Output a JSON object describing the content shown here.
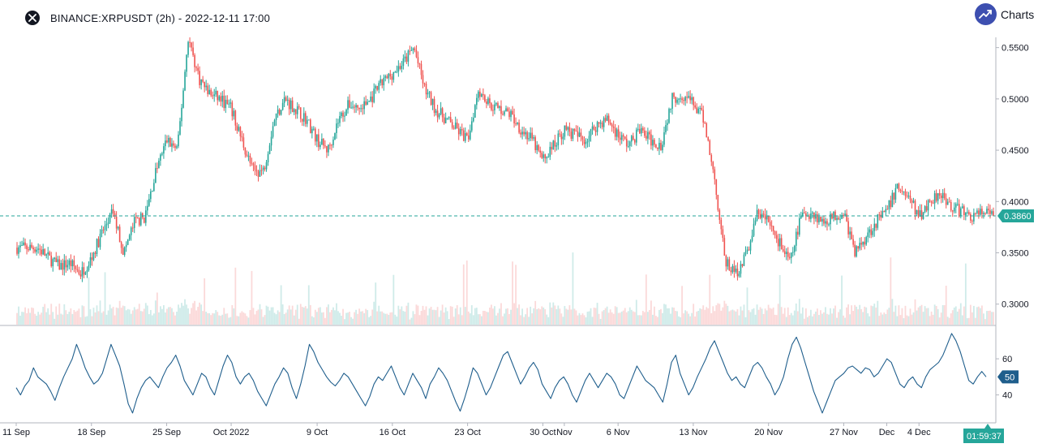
{
  "header": {
    "title": "BINANCE:XRPUSDT (2h) - 2022-12-11 17:00",
    "brand": "Charts p",
    "close_icon": "close-icon",
    "brand_icon": "trend-up-icon"
  },
  "colors": {
    "up": "#26a69a",
    "down": "#ef5350",
    "price_line": "#26a69a",
    "rsi": "#1f5e8c",
    "grid": "#e0e3eb"
  },
  "chart_data": [
    {
      "type": "candlestick",
      "title": "BINANCE:XRPUSDT (2h)",
      "ylim": [
        0.28,
        0.56
      ],
      "y_ticks": [
        "0.5500",
        "0.5000",
        "0.4500",
        "0.4000",
        "0.3500",
        "0.3000"
      ],
      "y_tick_values": [
        0.55,
        0.5,
        0.45,
        0.4,
        0.35,
        0.3
      ],
      "x_labels": [
        "11 Sep",
        "18 Sep",
        "25 Sep",
        "Oct 2022",
        "9 Oct",
        "16 Oct",
        "23 Oct",
        "30 Oct",
        "Nov",
        "6 Nov",
        "13 Nov",
        "20 Nov",
        "27 Nov",
        "Dec",
        "4 Dec"
      ],
      "x_label_days": [
        0,
        7,
        14,
        20,
        28,
        35,
        42,
        49,
        51,
        56,
        63,
        70,
        77,
        81,
        84
      ],
      "x_range_days": [
        0,
        91
      ],
      "last_price": 0.386,
      "last_price_label": "0.3860",
      "countdown": "01:59:37",
      "close_path": [
        [
          0,
          0.355
        ],
        [
          2,
          0.355
        ],
        [
          3,
          0.345
        ],
        [
          4,
          0.337
        ],
        [
          5,
          0.34
        ],
        [
          6,
          0.33
        ],
        [
          7,
          0.345
        ],
        [
          8,
          0.37
        ],
        [
          9,
          0.39
        ],
        [
          10,
          0.35
        ],
        [
          11,
          0.38
        ],
        [
          12,
          0.385
        ],
        [
          13,
          0.43
        ],
        [
          14,
          0.46
        ],
        [
          15,
          0.45
        ],
        [
          16,
          0.56
        ],
        [
          17,
          0.52
        ],
        [
          18,
          0.505
        ],
        [
          19,
          0.5
        ],
        [
          20,
          0.49
        ],
        [
          21,
          0.46
        ],
        [
          22,
          0.43
        ],
        [
          23,
          0.43
        ],
        [
          24,
          0.48
        ],
        [
          25,
          0.5
        ],
        [
          26,
          0.49
        ],
        [
          27,
          0.48
        ],
        [
          28,
          0.46
        ],
        [
          29,
          0.45
        ],
        [
          30,
          0.48
        ],
        [
          31,
          0.495
        ],
        [
          32,
          0.49
        ],
        [
          33,
          0.5
        ],
        [
          34,
          0.515
        ],
        [
          35,
          0.525
        ],
        [
          36,
          0.535
        ],
        [
          37,
          0.55
        ],
        [
          38,
          0.51
        ],
        [
          39,
          0.49
        ],
        [
          40,
          0.48
        ],
        [
          41,
          0.47
        ],
        [
          42,
          0.46
        ],
        [
          43,
          0.51
        ],
        [
          44,
          0.495
        ],
        [
          45,
          0.49
        ],
        [
          46,
          0.485
        ],
        [
          47,
          0.47
        ],
        [
          48,
          0.46
        ],
        [
          49,
          0.44
        ],
        [
          50,
          0.455
        ],
        [
          51,
          0.47
        ],
        [
          52,
          0.465
        ],
        [
          53,
          0.46
        ],
        [
          54,
          0.475
        ],
        [
          55,
          0.48
        ],
        [
          56,
          0.465
        ],
        [
          57,
          0.455
        ],
        [
          58,
          0.47
        ],
        [
          59,
          0.46
        ],
        [
          60,
          0.455
        ],
        [
          61,
          0.5
        ],
        [
          62,
          0.505
        ],
        [
          63,
          0.495
        ],
        [
          64,
          0.48
        ],
        [
          65,
          0.42
        ],
        [
          66,
          0.34
        ],
        [
          67,
          0.33
        ],
        [
          68,
          0.35
        ],
        [
          69,
          0.39
        ],
        [
          70,
          0.38
        ],
        [
          71,
          0.36
        ],
        [
          72,
          0.34
        ],
        [
          73,
          0.385
        ],
        [
          74,
          0.39
        ],
        [
          75,
          0.38
        ],
        [
          76,
          0.385
        ],
        [
          77,
          0.39
        ],
        [
          78,
          0.35
        ],
        [
          79,
          0.365
        ],
        [
          80,
          0.38
        ],
        [
          81,
          0.39
        ],
        [
          82,
          0.415
        ],
        [
          83,
          0.405
        ],
        [
          84,
          0.385
        ],
        [
          85,
          0.4
        ],
        [
          86,
          0.41
        ],
        [
          87,
          0.395
        ],
        [
          88,
          0.39
        ],
        [
          89,
          0.385
        ],
        [
          90,
          0.39
        ],
        [
          91,
          0.386
        ]
      ]
    },
    {
      "type": "line",
      "title": "RSI",
      "ylim": [
        25,
        78
      ],
      "y_ticks": [
        "60",
        "40"
      ],
      "y_tick_values": [
        60,
        40
      ],
      "last_value": 50,
      "last_value_label": "50",
      "values": [
        44,
        40,
        45,
        48,
        55,
        50,
        48,
        46,
        42,
        37,
        44,
        50,
        55,
        60,
        68,
        62,
        55,
        50,
        46,
        48,
        52,
        60,
        68,
        62,
        56,
        46,
        35,
        30,
        38,
        44,
        48,
        50,
        47,
        44,
        50,
        55,
        58,
        62,
        56,
        48,
        44,
        40,
        46,
        52,
        50,
        44,
        40,
        48,
        56,
        62,
        58,
        50,
        46,
        50,
        52,
        48,
        42,
        38,
        34,
        40,
        46,
        50,
        55,
        52,
        44,
        38,
        46,
        56,
        68,
        64,
        58,
        54,
        50,
        47,
        45,
        48,
        52,
        50,
        46,
        42,
        38,
        34,
        39,
        46,
        50,
        48,
        52,
        56,
        50,
        44,
        40,
        46,
        52,
        48,
        44,
        38,
        46,
        50,
        55,
        52,
        48,
        42,
        36,
        31,
        38,
        46,
        55,
        52,
        46,
        40,
        44,
        50,
        56,
        62,
        64,
        58,
        52,
        46,
        50,
        55,
        58,
        54,
        46,
        42,
        38,
        44,
        48,
        50,
        46,
        40,
        36,
        42,
        48,
        52,
        48,
        44,
        48,
        52,
        50,
        46,
        40,
        38,
        44,
        50,
        56,
        52,
        48,
        46,
        44,
        40,
        36,
        46,
        58,
        62,
        52,
        46,
        40,
        44,
        50,
        55,
        60,
        66,
        70,
        64,
        58,
        52,
        48,
        50,
        46,
        44,
        50,
        56,
        58,
        55,
        50,
        46,
        40,
        44,
        50,
        60,
        68,
        72,
        66,
        58,
        50,
        42,
        36,
        30,
        36,
        42,
        48,
        50,
        52,
        55,
        56,
        54,
        52,
        55,
        54,
        50,
        52,
        56,
        60,
        58,
        52,
        46,
        44,
        48,
        50,
        46,
        44,
        50,
        54,
        56,
        58,
        62,
        68,
        74,
        70,
        64,
        56,
        48,
        46,
        50,
        53,
        50
      ]
    }
  ]
}
